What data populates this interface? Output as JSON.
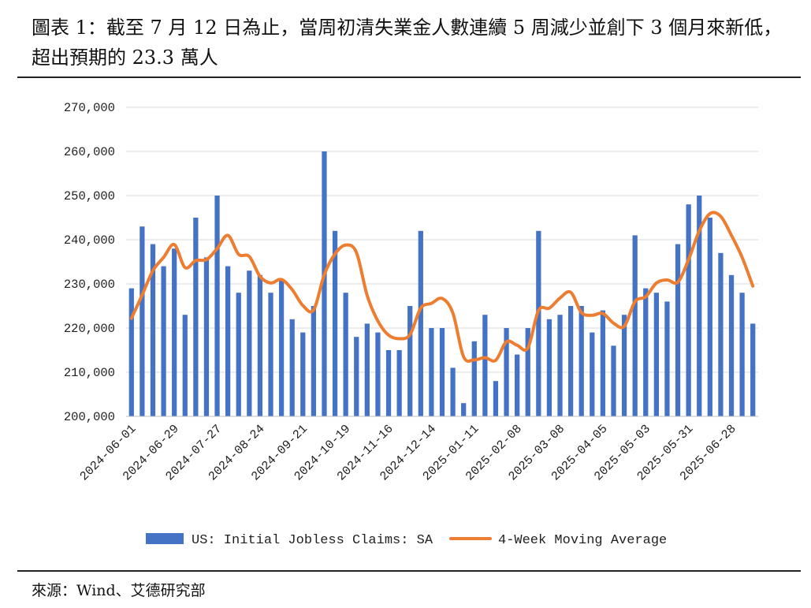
{
  "title": "圖表 1：截至 7 月 12 日為止，當周初清失業金人數連續 5 周減少並創下 3 個月來新低，超出預期的 23.3 萬人",
  "source": "來源：Wind、艾德研究部",
  "chart_data": {
    "type": "bar",
    "categories": [
      "2024-06-01",
      "2024-06-08",
      "2024-06-15",
      "2024-06-22",
      "2024-06-29",
      "2024-07-06",
      "2024-07-13",
      "2024-07-20",
      "2024-07-27",
      "2024-08-03",
      "2024-08-10",
      "2024-08-17",
      "2024-08-24",
      "2024-08-31",
      "2024-09-07",
      "2024-09-14",
      "2024-09-21",
      "2024-09-28",
      "2024-10-05",
      "2024-10-12",
      "2024-10-19",
      "2024-10-26",
      "2024-11-02",
      "2024-11-09",
      "2024-11-16",
      "2024-11-23",
      "2024-11-30",
      "2024-12-07",
      "2024-12-14",
      "2024-12-21",
      "2024-12-28",
      "2025-01-04",
      "2025-01-11",
      "2025-01-18",
      "2025-01-25",
      "2025-02-01",
      "2025-02-08",
      "2025-02-15",
      "2025-02-22",
      "2025-03-01",
      "2025-03-08",
      "2025-03-15",
      "2025-03-22",
      "2025-03-29",
      "2025-04-05",
      "2025-04-12",
      "2025-04-19",
      "2025-04-26",
      "2025-05-03",
      "2025-05-10",
      "2025-05-17",
      "2025-05-24",
      "2025-05-31",
      "2025-06-07",
      "2025-06-14",
      "2025-06-21",
      "2025-06-28",
      "2025-07-05",
      "2025-07-12"
    ],
    "x_tick_labels": [
      "2024-06-01",
      "2024-06-29",
      "2024-07-27",
      "2024-08-24",
      "2024-09-21",
      "2024-10-19",
      "2024-11-16",
      "2024-12-14",
      "2025-01-11",
      "2025-02-08",
      "2025-03-08",
      "2025-04-05",
      "2025-05-03",
      "2025-05-31",
      "2025-06-28"
    ],
    "series": [
      {
        "name": "US: Initial Jobless Claims: SA",
        "type": "bar",
        "color": "#4472C4",
        "values": [
          229000,
          243000,
          239000,
          234000,
          238000,
          223000,
          245000,
          236000,
          250000,
          234000,
          228000,
          233000,
          232000,
          228000,
          231000,
          222000,
          219000,
          225000,
          260000,
          242000,
          228000,
          218000,
          221000,
          219000,
          215000,
          215000,
          225000,
          242000,
          220000,
          220000,
          211000,
          203000,
          217000,
          223000,
          208000,
          220000,
          214000,
          220000,
          242000,
          222000,
          223000,
          225000,
          225000,
          219000,
          224000,
          216000,
          223000,
          241000,
          229000,
          228000,
          226000,
          239000,
          248000,
          250000,
          245000,
          237000,
          232000,
          228000,
          221000
        ]
      },
      {
        "name": "4-Week Moving Average",
        "type": "line",
        "color": "#ED7D31",
        "values": [
          222200,
          227500,
          233000,
          236000,
          238900,
          233700,
          235300,
          235500,
          238000,
          241000,
          236700,
          236200,
          231700,
          230200,
          231000,
          228700,
          225100,
          224100,
          232100,
          236800,
          238800,
          237100,
          227400,
          221600,
          218400,
          217600,
          218500,
          224500,
          225600,
          226700,
          223400,
          213500,
          212800,
          213300,
          212700,
          216900,
          216100,
          215500,
          224000,
          224500,
          226800,
          228100,
          223500,
          222900,
          223300,
          221100,
          220400,
          226000,
          227100,
          230200,
          230900,
          230400,
          235500,
          242000,
          245900,
          245300,
          241000,
          236000,
          229500
        ]
      }
    ],
    "ylim": [
      200000,
      270000
    ],
    "yticks": [
      200000,
      210000,
      220000,
      230000,
      240000,
      250000,
      260000,
      270000
    ],
    "y_tick_labels": [
      "200,000",
      "210,000",
      "220,000",
      "230,000",
      "240,000",
      "250,000",
      "260,000",
      "270,000"
    ],
    "grid": "horizontal",
    "legend_position": "bottom"
  }
}
